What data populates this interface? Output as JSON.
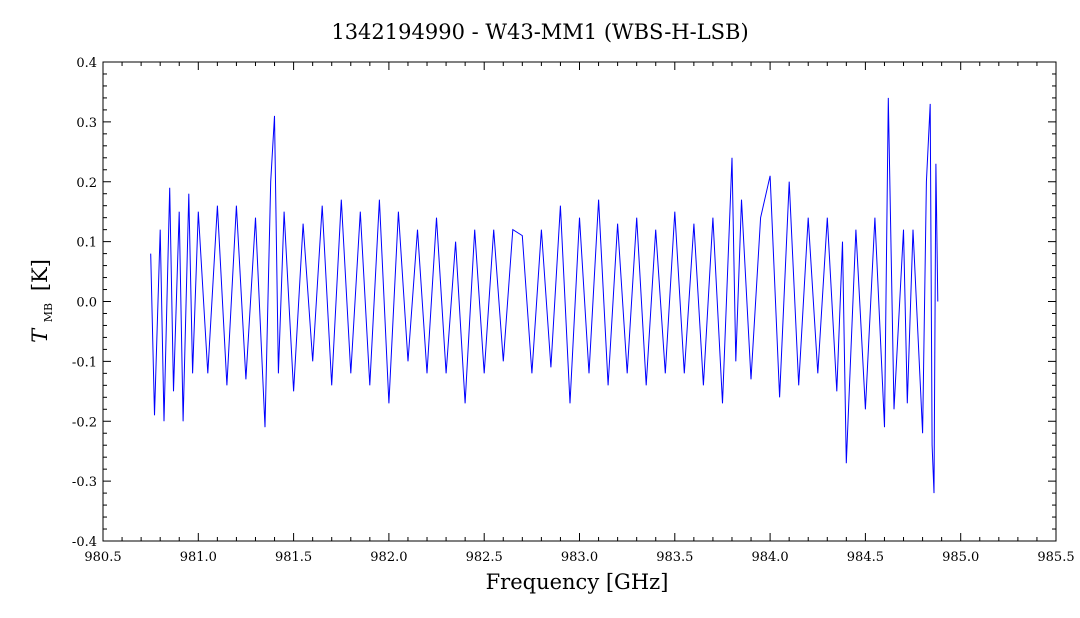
{
  "chart_data": {
    "type": "line",
    "title": "1342194990 - W43-MM1 (WBS-H-LSB)",
    "xlabel": "Frequency [GHz]",
    "ylabel": {
      "symbol": "T",
      "subscript": "MB",
      "unit": "[K]"
    },
    "xlim": [
      980.5,
      985.5
    ],
    "ylim": [
      -0.4,
      0.4
    ],
    "x_ticks": [
      980.5,
      981.0,
      981.5,
      982.0,
      982.5,
      983.0,
      983.5,
      984.0,
      984.5,
      985.0,
      985.5
    ],
    "x_tick_labels": [
      "980.5",
      "981.0",
      "981.5",
      "982.0",
      "982.5",
      "983.0",
      "983.5",
      "984.0",
      "984.5",
      "985.0",
      "985.5"
    ],
    "y_ticks": [
      -0.4,
      -0.3,
      -0.2,
      -0.1,
      0.0,
      0.1,
      0.2,
      0.3,
      0.4
    ],
    "y_tick_labels": [
      "-0.4",
      "-0.3",
      "-0.2",
      "-0.1",
      "0.0",
      "0.1",
      "0.2",
      "0.3",
      "0.4"
    ],
    "grid": false,
    "series": [
      {
        "color": "#0000ff",
        "x": [
          980.75,
          980.77,
          980.8,
          980.82,
          980.85,
          980.87,
          980.9,
          980.92,
          980.95,
          980.97,
          981.0,
          981.05,
          981.1,
          981.15,
          981.2,
          981.25,
          981.3,
          981.35,
          981.38,
          981.4,
          981.42,
          981.45,
          981.5,
          981.55,
          981.6,
          981.65,
          981.7,
          981.75,
          981.8,
          981.85,
          981.9,
          981.95,
          982.0,
          982.05,
          982.1,
          982.15,
          982.2,
          982.25,
          982.3,
          982.35,
          982.4,
          982.45,
          982.5,
          982.55,
          982.6,
          982.65,
          982.7,
          982.75,
          982.8,
          982.85,
          982.9,
          982.95,
          983.0,
          983.05,
          983.1,
          983.15,
          983.2,
          983.25,
          983.3,
          983.35,
          983.4,
          983.45,
          983.5,
          983.55,
          983.6,
          983.65,
          983.7,
          983.75,
          983.8,
          983.82,
          983.85,
          983.9,
          983.95,
          984.0,
          984.05,
          984.1,
          984.15,
          984.2,
          984.25,
          984.3,
          984.35,
          984.38,
          984.4,
          984.45,
          984.5,
          984.55,
          984.6,
          984.62,
          984.65,
          984.7,
          984.72,
          984.75,
          984.8,
          984.82,
          984.84,
          984.85,
          984.86,
          984.87,
          984.88
        ],
        "y": [
          0.08,
          -0.19,
          0.12,
          -0.2,
          0.19,
          -0.15,
          0.15,
          -0.2,
          0.18,
          -0.12,
          0.15,
          -0.12,
          0.16,
          -0.14,
          0.16,
          -0.13,
          0.14,
          -0.21,
          0.2,
          0.31,
          -0.12,
          0.15,
          -0.15,
          0.13,
          -0.1,
          0.16,
          -0.14,
          0.17,
          -0.12,
          0.15,
          -0.14,
          0.17,
          -0.17,
          0.15,
          -0.1,
          0.12,
          -0.12,
          0.14,
          -0.12,
          0.1,
          -0.17,
          0.12,
          -0.12,
          0.12,
          -0.1,
          0.12,
          0.11,
          -0.12,
          0.12,
          -0.11,
          0.16,
          -0.17,
          0.14,
          -0.12,
          0.17,
          -0.14,
          0.13,
          -0.12,
          0.14,
          -0.14,
          0.12,
          -0.12,
          0.15,
          -0.12,
          0.13,
          -0.14,
          0.14,
          -0.17,
          0.24,
          -0.1,
          0.17,
          -0.13,
          0.14,
          0.21,
          -0.16,
          0.2,
          -0.14,
          0.14,
          -0.12,
          0.14,
          -0.15,
          0.1,
          -0.27,
          0.12,
          -0.18,
          0.14,
          -0.21,
          0.34,
          -0.18,
          0.12,
          -0.17,
          0.12,
          -0.22,
          0.2,
          0.33,
          -0.24,
          -0.32,
          0.23,
          0.0
        ]
      }
    ]
  }
}
